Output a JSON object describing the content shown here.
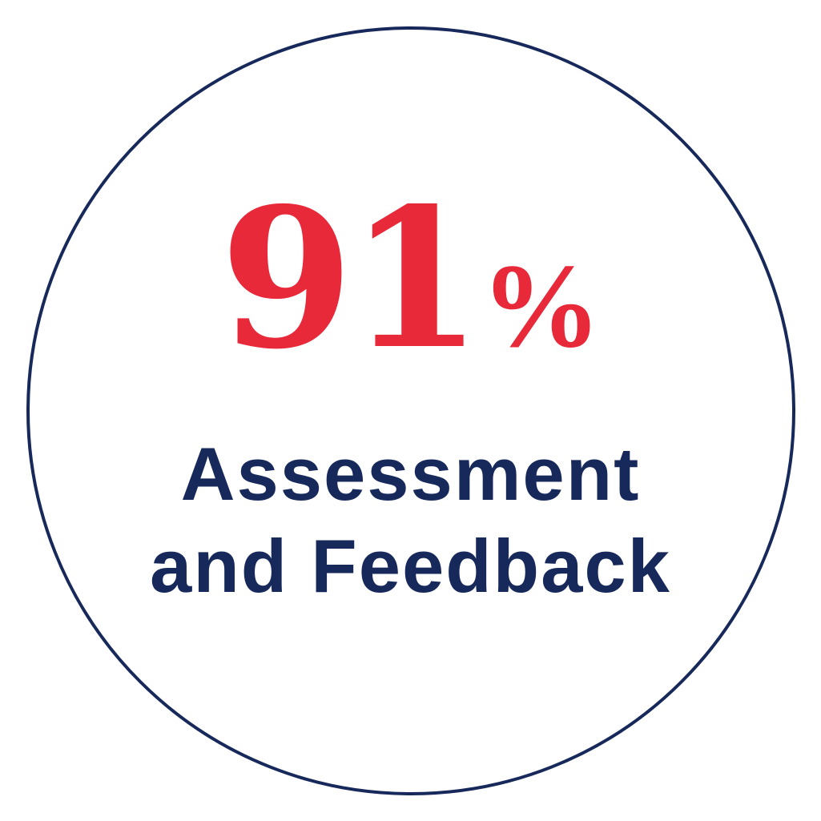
{
  "stat": {
    "value": "91",
    "unit": "%"
  },
  "label": {
    "line1": "Assessment",
    "line2": "and Feedback"
  },
  "colors": {
    "accent": "#e8293a",
    "navy": "#17295a"
  }
}
